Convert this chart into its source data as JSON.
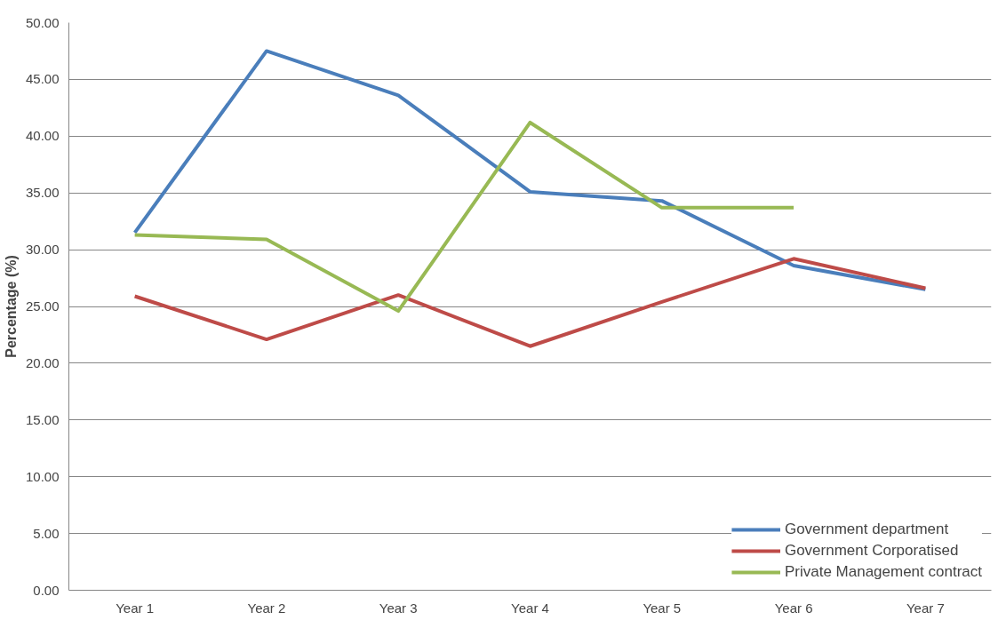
{
  "chart_data": {
    "type": "line",
    "ylabel": "Percentage (%)",
    "categories": [
      "Year 1",
      "Year 2",
      "Year 3",
      "Year 4",
      "Year 5",
      "Year 6",
      "Year 7"
    ],
    "series": [
      {
        "name": "Government department",
        "color": "#4a7ebb",
        "values": [
          31.5,
          47.5,
          43.6,
          35.1,
          34.3,
          28.6,
          26.5
        ]
      },
      {
        "name": "Government Corporatised",
        "color": "#be4b48",
        "values": [
          25.9,
          22.1,
          26.0,
          21.5,
          25.4,
          29.2,
          26.6
        ]
      },
      {
        "name": "Private Management contract",
        "color": "#98b954",
        "values": [
          31.3,
          30.9,
          24.6,
          41.2,
          33.7,
          33.7,
          null
        ]
      }
    ],
    "ylim": [
      0,
      50
    ],
    "yticks": [
      {
        "value": 0,
        "label": "0.00"
      },
      {
        "value": 5,
        "label": "5.00"
      },
      {
        "value": 10,
        "label": "10.00"
      },
      {
        "value": 15,
        "label": "15.00"
      },
      {
        "value": 20,
        "label": "20.00"
      },
      {
        "value": 25,
        "label": "25.00"
      },
      {
        "value": 30,
        "label": "30.00"
      },
      {
        "value": 35,
        "label": "35.00"
      },
      {
        "value": 40,
        "label": "40.00"
      },
      {
        "value": 45,
        "label": "45.00"
      },
      {
        "value": 50,
        "label": "50.00"
      }
    ],
    "grid": "y",
    "legend": "bottom right",
    "marker": "none",
    "line_style": "solid"
  }
}
